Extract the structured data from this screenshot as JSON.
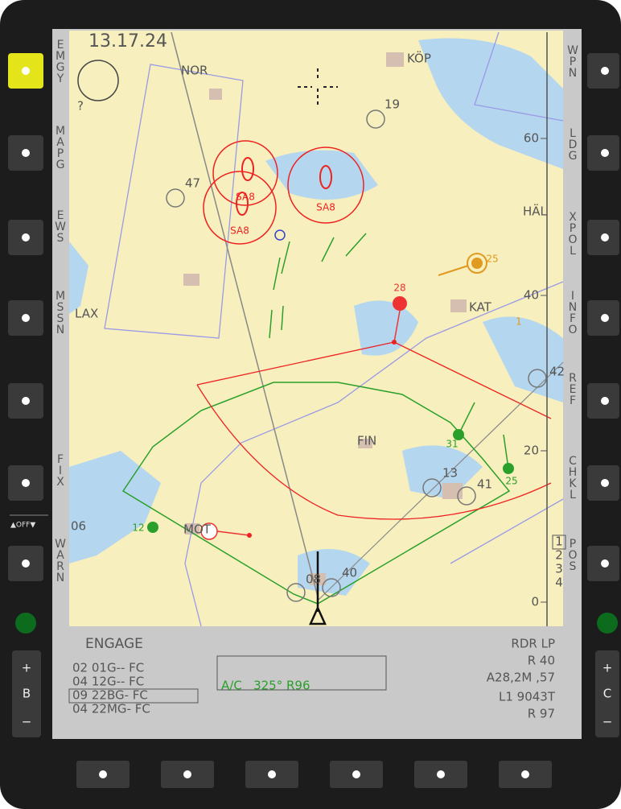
{
  "clock": "13.17.24",
  "left_labels": [
    "EMGY",
    "MAPG",
    "EWS",
    "MSSN",
    "FIX",
    "WARN"
  ],
  "left_note": "?",
  "off_label": "▲OFF▼",
  "right_labels": [
    "WPN",
    "LDG",
    "XPOL",
    "INFO",
    "REF",
    "CHKL",
    "POS"
  ],
  "pos_numbers": [
    "1",
    "2",
    "3",
    "4"
  ],
  "places": [
    "NOR",
    "KÖP",
    "LAX",
    "KAT",
    "HÄL",
    "FIN",
    "MOT"
  ],
  "waypoints": [
    "19",
    "47",
    "42",
    "13",
    "41",
    "40",
    "08",
    "06"
  ],
  "threats": [
    "SA8",
    "SA8",
    "SA8"
  ],
  "contacts": [
    "28",
    "25",
    "31",
    "25",
    "12",
    "1"
  ],
  "range_scale": [
    60,
    40,
    20,
    0
  ],
  "bottom": {
    "mode": "ENGAGE",
    "targets": [
      "02 01G-- FC",
      "04 12G-- FC",
      "09 22BG- FC",
      "04 22MG- FC"
    ],
    "status_box": "A/C   325° R96",
    "readout": [
      "RDR LP",
      "R 40",
      "A28,2M ,57",
      "L1 9043T",
      "R 97"
    ]
  },
  "side_buttons": {
    "left": "B",
    "right": "C",
    "plus": "+",
    "minus": "−"
  }
}
